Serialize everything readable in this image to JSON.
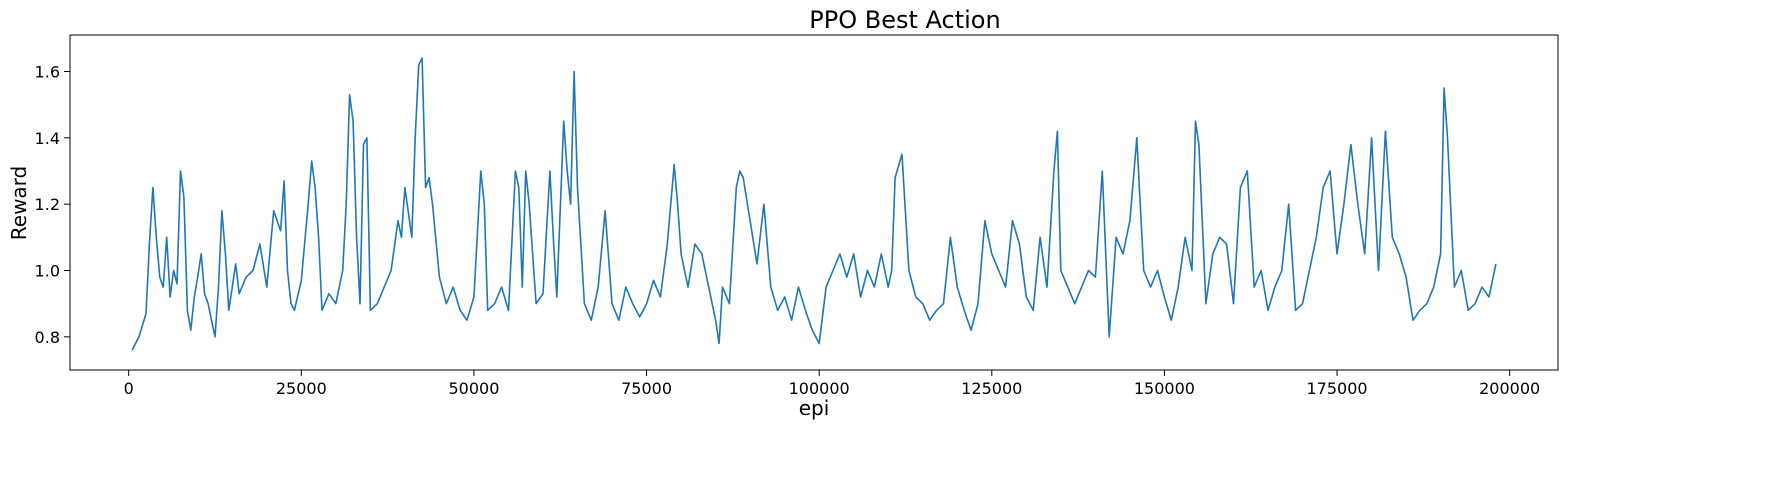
{
  "chart_data": {
    "type": "line",
    "title": "PPO Best Action",
    "xlabel": "epi",
    "ylabel": "Reward",
    "xlim": [
      -8500,
      207000
    ],
    "ylim": [
      0.7,
      1.71
    ],
    "xticks": [
      0,
      25000,
      50000,
      75000,
      100000,
      125000,
      150000,
      175000,
      200000
    ],
    "yticks": [
      0.8,
      1.0,
      1.2,
      1.4,
      1.6
    ],
    "grid": false,
    "color": "#1f77b4",
    "series": [
      {
        "name": "",
        "x": [
          500,
          1500,
          2500,
          3000,
          3500,
          4000,
          4500,
          5000,
          5500,
          6000,
          6500,
          7000,
          7500,
          8000,
          8500,
          9000,
          9500,
          10000,
          10500,
          11000,
          11500,
          12000,
          12500,
          13000,
          13500,
          14000,
          14500,
          15000,
          15500,
          16000,
          17000,
          18000,
          19000,
          20000,
          21000,
          22000,
          22500,
          23000,
          23500,
          24000,
          25000,
          26000,
          26500,
          27000,
          27500,
          28000,
          29000,
          30000,
          31000,
          31500,
          32000,
          32500,
          33000,
          33500,
          34000,
          34500,
          35000,
          36000,
          37000,
          38000,
          39000,
          39500,
          40000,
          41000,
          41500,
          42000,
          42500,
          43000,
          43500,
          44000,
          45000,
          46000,
          47000,
          48000,
          49000,
          50000,
          51000,
          51500,
          52000,
          53000,
          54000,
          55000,
          56000,
          56500,
          57000,
          57500,
          58000,
          59000,
          60000,
          61000,
          61500,
          62000,
          63000,
          63500,
          64000,
          64500,
          65000,
          66000,
          67000,
          68000,
          69000,
          70000,
          71000,
          72000,
          73000,
          74000,
          75000,
          76000,
          77000,
          78000,
          79000,
          79500,
          80000,
          81000,
          82000,
          83000,
          84000,
          85000,
          85500,
          86000,
          87000,
          88000,
          88500,
          89000,
          90000,
          91000,
          92000,
          93000,
          94000,
          95000,
          96000,
          97000,
          98000,
          99000,
          100000,
          101000,
          102000,
          103000,
          104000,
          105000,
          106000,
          107000,
          108000,
          109000,
          110000,
          110500,
          111000,
          112000,
          113000,
          114000,
          115000,
          116000,
          117000,
          118000,
          119000,
          120000,
          121000,
          122000,
          123000,
          124000,
          125000,
          126000,
          127000,
          128000,
          129000,
          130000,
          131000,
          132000,
          133000,
          134000,
          134500,
          135000,
          136000,
          137000,
          138000,
          139000,
          140000,
          141000,
          142000,
          143000,
          144000,
          145000,
          146000,
          147000,
          148000,
          149000,
          150000,
          151000,
          152000,
          153000,
          154000,
          154500,
          155000,
          156000,
          157000,
          158000,
          159000,
          160000,
          161000,
          162000,
          163000,
          164000,
          165000,
          166000,
          167000,
          168000,
          169000,
          170000,
          171000,
          172000,
          173000,
          174000,
          175000,
          176000,
          177000,
          178000,
          179000,
          180000,
          181000,
          182000,
          183000,
          184000,
          185000,
          186000,
          187000,
          188000,
          189000,
          190000,
          190500,
          191000,
          192000,
          193000,
          194000,
          195000,
          196000,
          197000,
          198000
        ],
        "values": [
          0.76,
          0.8,
          0.87,
          1.08,
          1.25,
          1.1,
          0.98,
          0.95,
          1.1,
          0.92,
          1.0,
          0.96,
          1.3,
          1.22,
          0.88,
          0.82,
          0.92,
          0.98,
          1.05,
          0.93,
          0.9,
          0.85,
          0.8,
          0.95,
          1.18,
          1.05,
          0.88,
          0.95,
          1.02,
          0.93,
          0.98,
          1.0,
          1.08,
          0.95,
          1.18,
          1.12,
          1.27,
          1.0,
          0.9,
          0.88,
          0.97,
          1.2,
          1.33,
          1.25,
          1.1,
          0.88,
          0.93,
          0.9,
          1.0,
          1.2,
          1.53,
          1.45,
          1.1,
          0.9,
          1.38,
          1.4,
          0.88,
          0.9,
          0.95,
          1.0,
          1.15,
          1.1,
          1.25,
          1.1,
          1.4,
          1.62,
          1.64,
          1.25,
          1.28,
          1.2,
          0.98,
          0.9,
          0.95,
          0.88,
          0.85,
          0.92,
          1.3,
          1.2,
          0.88,
          0.9,
          0.95,
          0.88,
          1.3,
          1.25,
          0.95,
          1.3,
          1.2,
          0.9,
          0.93,
          1.3,
          1.1,
          0.92,
          1.45,
          1.3,
          1.2,
          1.6,
          1.25,
          0.9,
          0.85,
          0.95,
          1.18,
          0.9,
          0.85,
          0.95,
          0.9,
          0.86,
          0.9,
          0.97,
          0.92,
          1.08,
          1.32,
          1.2,
          1.05,
          0.95,
          1.08,
          1.05,
          0.95,
          0.85,
          0.78,
          0.95,
          0.9,
          1.25,
          1.3,
          1.28,
          1.15,
          1.02,
          1.2,
          0.95,
          0.88,
          0.92,
          0.85,
          0.95,
          0.88,
          0.82,
          0.78,
          0.95,
          1.0,
          1.05,
          0.98,
          1.05,
          0.92,
          1.0,
          0.95,
          1.05,
          0.95,
          1.0,
          1.28,
          1.35,
          1.0,
          0.92,
          0.9,
          0.85,
          0.88,
          0.9,
          1.1,
          0.95,
          0.88,
          0.82,
          0.9,
          1.15,
          1.05,
          1.0,
          0.95,
          1.15,
          1.08,
          0.92,
          0.88,
          1.1,
          0.95,
          1.3,
          1.42,
          1.0,
          0.95,
          0.9,
          0.95,
          1.0,
          0.98,
          1.3,
          0.8,
          1.1,
          1.05,
          1.15,
          1.4,
          1.0,
          0.95,
          1.0,
          0.92,
          0.85,
          0.95,
          1.1,
          1.0,
          1.45,
          1.38,
          0.9,
          1.05,
          1.1,
          1.08,
          0.9,
          1.25,
          1.3,
          0.95,
          1.0,
          0.88,
          0.95,
          1.0,
          1.2,
          0.88,
          0.9,
          1.0,
          1.1,
          1.25,
          1.3,
          1.05,
          1.2,
          1.38,
          1.2,
          1.05,
          1.4,
          1.0,
          1.42,
          1.1,
          1.05,
          0.98,
          0.85,
          0.88,
          0.9,
          0.95,
          1.05,
          1.55,
          1.4,
          0.95,
          1.0,
          0.88,
          0.9,
          0.95,
          0.92,
          1.02
        ]
      }
    ]
  }
}
